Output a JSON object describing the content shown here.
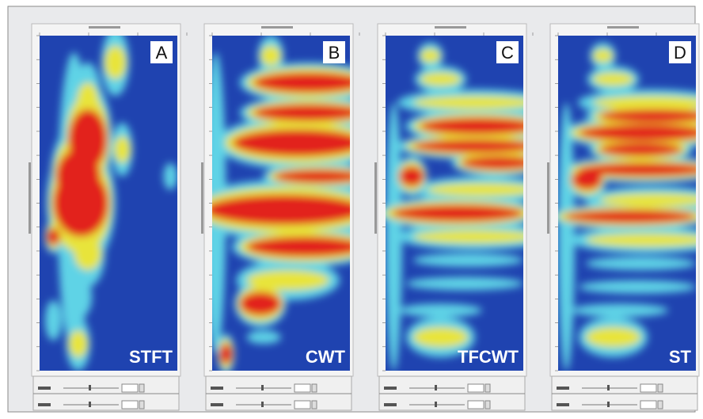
{
  "panels": [
    {
      "letter": "A",
      "method": "STFT"
    },
    {
      "letter": "B",
      "method": "CWT"
    },
    {
      "letter": "C",
      "method": "TFCWT"
    },
    {
      "letter": "D",
      "method": "ST"
    }
  ]
}
